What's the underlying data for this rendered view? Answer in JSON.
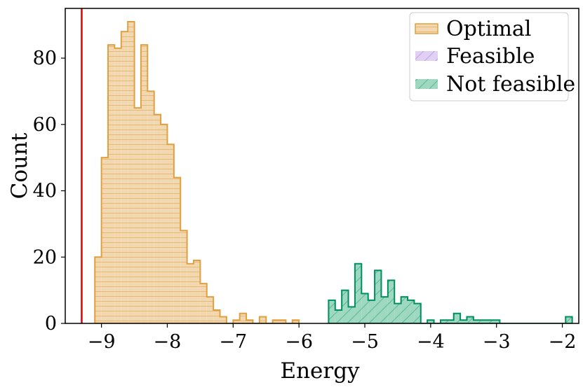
{
  "chart_data": {
    "type": "histogram",
    "xlabel": "Energy",
    "ylabel": "Count",
    "xlim": [
      -9.55,
      -1.75
    ],
    "ylim": [
      0,
      95
    ],
    "x_ticks": [
      -9,
      -8,
      -7,
      -6,
      -5,
      -4,
      -3,
      -2
    ],
    "x_tick_labels": [
      "−9",
      "−8",
      "−7",
      "−6",
      "−5",
      "−4",
      "−3",
      "−2"
    ],
    "y_ticks": [
      0,
      20,
      40,
      60,
      80
    ],
    "y_tick_labels": [
      "0",
      "20",
      "40",
      "60",
      "80"
    ],
    "reference_line": {
      "x": -9.3,
      "color": "#e00000"
    },
    "legend": {
      "position": "top-right",
      "entries": [
        {
          "label": "Optimal",
          "series": "optimal"
        },
        {
          "label": "Feasible",
          "series": "feasible"
        },
        {
          "label": "Not feasible",
          "series": "not_feasible"
        }
      ]
    },
    "series": [
      {
        "name": "Optimal",
        "key": "optimal",
        "edge_color": "#e0a040",
        "fill_color": "#f2d8b0",
        "hatch": "horizontal",
        "bins": [
          {
            "x0": -9.1,
            "x1": -9.0,
            "count": 20
          },
          {
            "x0": -9.0,
            "x1": -8.9,
            "count": 50
          },
          {
            "x0": -8.9,
            "x1": -8.8,
            "count": 84
          },
          {
            "x0": -8.8,
            "x1": -8.7,
            "count": 83
          },
          {
            "x0": -8.7,
            "x1": -8.6,
            "count": 88
          },
          {
            "x0": -8.6,
            "x1": -8.5,
            "count": 91
          },
          {
            "x0": -8.5,
            "x1": -8.4,
            "count": 65
          },
          {
            "x0": -8.4,
            "x1": -8.3,
            "count": 84
          },
          {
            "x0": -8.3,
            "x1": -8.2,
            "count": 70
          },
          {
            "x0": -8.2,
            "x1": -8.1,
            "count": 63
          },
          {
            "x0": -8.1,
            "x1": -8.0,
            "count": 60
          },
          {
            "x0": -8.0,
            "x1": -7.9,
            "count": 54
          },
          {
            "x0": -7.9,
            "x1": -7.8,
            "count": 44
          },
          {
            "x0": -7.8,
            "x1": -7.7,
            "count": 28
          },
          {
            "x0": -7.7,
            "x1": -7.6,
            "count": 18
          },
          {
            "x0": -7.6,
            "x1": -7.5,
            "count": 19
          },
          {
            "x0": -7.5,
            "x1": -7.4,
            "count": 12
          },
          {
            "x0": -7.4,
            "x1": -7.3,
            "count": 8
          },
          {
            "x0": -7.3,
            "x1": -7.2,
            "count": 4
          },
          {
            "x0": -7.2,
            "x1": -7.1,
            "count": 2
          },
          {
            "x0": -7.0,
            "x1": -6.9,
            "count": 1
          },
          {
            "x0": -6.9,
            "x1": -6.8,
            "count": 3
          },
          {
            "x0": -6.8,
            "x1": -6.7,
            "count": 1
          },
          {
            "x0": -6.6,
            "x1": -6.5,
            "count": 2
          },
          {
            "x0": -6.4,
            "x1": -6.2,
            "count": 1
          },
          {
            "x0": -6.1,
            "x1": -6.0,
            "count": 1
          }
        ]
      },
      {
        "name": "Feasible",
        "key": "feasible",
        "edge_color": "#b090e0",
        "fill_color": "#e0d0f4",
        "hatch": "diagonal",
        "bins": []
      },
      {
        "name": "Not feasible",
        "key": "not_feasible",
        "edge_color": "#009060",
        "fill_color": "#9ed8c0",
        "hatch": "diagonal",
        "bins": [
          {
            "x0": -5.55,
            "x1": -5.45,
            "count": 7
          },
          {
            "x0": -5.45,
            "x1": -5.35,
            "count": 4
          },
          {
            "x0": -5.35,
            "x1": -5.25,
            "count": 10
          },
          {
            "x0": -5.25,
            "x1": -5.15,
            "count": 5
          },
          {
            "x0": -5.15,
            "x1": -5.05,
            "count": 18
          },
          {
            "x0": -5.05,
            "x1": -4.95,
            "count": 9
          },
          {
            "x0": -4.95,
            "x1": -4.85,
            "count": 7
          },
          {
            "x0": -4.85,
            "x1": -4.75,
            "count": 16
          },
          {
            "x0": -4.75,
            "x1": -4.65,
            "count": 8
          },
          {
            "x0": -4.65,
            "x1": -4.55,
            "count": 13
          },
          {
            "x0": -4.55,
            "x1": -4.45,
            "count": 6
          },
          {
            "x0": -4.45,
            "x1": -4.35,
            "count": 8
          },
          {
            "x0": -4.35,
            "x1": -4.25,
            "count": 7
          },
          {
            "x0": -4.25,
            "x1": -4.15,
            "count": 6
          },
          {
            "x0": -4.05,
            "x1": -3.95,
            "count": 1
          },
          {
            "x0": -3.85,
            "x1": -3.65,
            "count": 1
          },
          {
            "x0": -3.65,
            "x1": -3.55,
            "count": 3
          },
          {
            "x0": -3.55,
            "x1": -3.45,
            "count": 1
          },
          {
            "x0": -3.45,
            "x1": -3.35,
            "count": 2
          },
          {
            "x0": -3.35,
            "x1": -3.25,
            "count": 1
          },
          {
            "x0": -3.25,
            "x1": -2.95,
            "count": 1
          },
          {
            "x0": -1.95,
            "x1": -1.85,
            "count": 2
          }
        ]
      }
    ]
  }
}
